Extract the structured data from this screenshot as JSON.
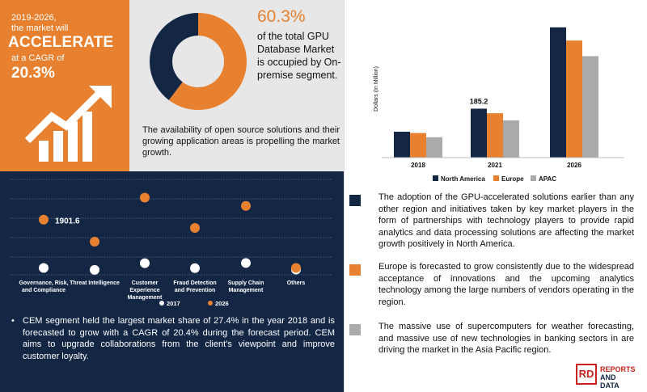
{
  "headline": {
    "line1": "2019-2026,",
    "line2": "the market will",
    "big": "ACCELERATE",
    "line3": "at a CAGR of",
    "cagr": "20.3%",
    "icon": "growth-arrow-icon"
  },
  "donut": {
    "percent_label": "60.3%",
    "text": "of the total GPU Database Market is occupied by On-premise segment.",
    "values": [
      60.3,
      39.7
    ],
    "colors": [
      "#e8812f",
      "#132644"
    ]
  },
  "gray_paragraph": "The availability of open source solutions and their growing application areas is propelling the market growth.",
  "colors": {
    "navy": "#132644",
    "orange": "#e8812f",
    "gray": "#aaaaaa",
    "white": "#ffffff"
  },
  "chart_data": [
    {
      "type": "scatter",
      "categories": [
        "Governance, Risk, and Compliance",
        "Threat Intelligence",
        "Customer Experience Management",
        "Fraud Detection and Prevention",
        "Supply Chain Management",
        "Others"
      ],
      "series": [
        {
          "name": "2017",
          "values": [
            150,
            80,
            320,
            140,
            330,
            90
          ]
        },
        {
          "name": "2026",
          "values": [
            1901.6,
            1100,
            2700,
            1600,
            2400,
            150
          ]
        }
      ],
      "annotations": [
        "1901.6"
      ],
      "ylim": [
        -100,
        3300
      ],
      "legend": "bottom",
      "grid": true
    },
    {
      "type": "bar",
      "categories": [
        "2018",
        "2021",
        "2026"
      ],
      "series": [
        {
          "name": "North America",
          "values": [
            98,
            185.2,
            493
          ]
        },
        {
          "name": "Europe",
          "values": [
            93,
            168,
            443
          ]
        },
        {
          "name": "APAC",
          "values": [
            77,
            141,
            384
          ]
        }
      ],
      "annotations": [
        "185.2"
      ],
      "ylabel": "Dollars (In Million)",
      "ylim": [
        0,
        520
      ],
      "legend": "bottom"
    }
  ],
  "navy_paragraph": "CEM segment held the largest market share of 27.4% in the year 2018 and is forecasted to grow with a CAGR of 20.4% during the forecast period. CEM aims to upgrade collaborations from the client’s viewpoint and improve customer loyalty.",
  "bullet_char": "•",
  "right_points": [
    {
      "color": "#132644",
      "text": "The adoption of the GPU-accelerated solutions earlier than any other region and initiatives taken by key market players in the form of partnerships with technology players to provide rapid analytics and data processing solutions are affecting the market growth positively in North America."
    },
    {
      "color": "#e8812f",
      "text": "Europe is forecasted to grow consistently due to the widespread acceptance of innovations and the upcoming analytics technology among the large numbers of vendors operating in the region."
    },
    {
      "color": "#aaaaaa",
      "text": "The massive use of supercomputers for weather forecasting, and massive use of new technologies in banking sectors in are driving the market in the Asia Pacific region."
    }
  ],
  "logo": {
    "mark": "RD",
    "line1": "REPORTS",
    "line2": "AND DATA"
  }
}
